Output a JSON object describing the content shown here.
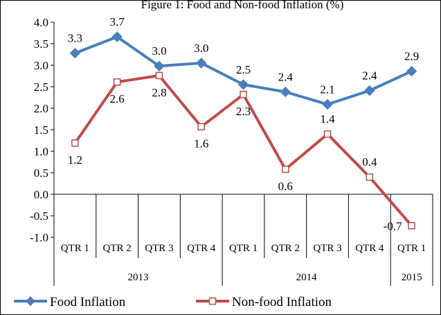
{
  "chart_data": {
    "type": "line",
    "title": "Figure 1: Food and Non-food Inflation (%)",
    "categories": [
      "QTR 1",
      "QTR 2",
      "QTR 3",
      "QTR 4",
      "QTR 1",
      "QTR 2",
      "QTR 3",
      "QTR 4",
      "QTR 1"
    ],
    "years": [
      {
        "label": "2013",
        "span": 4
      },
      {
        "label": "2014",
        "span": 4
      },
      {
        "label": "2015",
        "span": 1
      }
    ],
    "yticks": [
      "4.0",
      "3.5",
      "3.0",
      "2.5",
      "2.0",
      "1.5",
      "1.0",
      "0.5",
      "0.0",
      "-0.5",
      "-1.0"
    ],
    "ylim": [
      -1.0,
      4.0
    ],
    "grid": false,
    "legend_position": "bottom",
    "series": [
      {
        "name": "Food Inflation",
        "color": "#4a7ebb",
        "marker": "diamond",
        "values": [
          3.28,
          3.66,
          2.98,
          3.05,
          2.55,
          2.38,
          2.09,
          2.41,
          2.86
        ],
        "labels": [
          "3.3",
          "3.7",
          "3.0",
          "3.0",
          "2.5",
          "2.4",
          "2.1",
          "2.4",
          "2.9"
        ]
      },
      {
        "name": "Non-food Inflation",
        "color": "#be4b48",
        "marker": "square-open",
        "values": [
          1.19,
          2.61,
          2.76,
          1.57,
          2.32,
          0.58,
          1.4,
          0.4,
          -0.73
        ],
        "labels": [
          "1.2",
          "2.6",
          "2.8",
          "1.6",
          "2.3",
          "0.6",
          "1.4",
          "0.4",
          "-0.7"
        ]
      }
    ]
  }
}
